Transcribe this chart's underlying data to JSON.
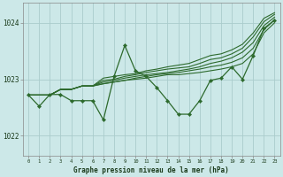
{
  "title": "Graphe pression niveau de la mer (hPa)",
  "background_color": "#cce8e8",
  "grid_color": "#aacccc",
  "line_color": "#2d6a2d",
  "xlim": [
    -0.5,
    23.5
  ],
  "ylim": [
    1021.65,
    1024.35
  ],
  "yticks": [
    1022,
    1023,
    1024
  ],
  "xticks": [
    0,
    1,
    2,
    3,
    4,
    5,
    6,
    7,
    8,
    9,
    10,
    11,
    12,
    13,
    14,
    15,
    16,
    17,
    18,
    19,
    20,
    21,
    22,
    23
  ],
  "main_line": [
    1022.72,
    1022.52,
    1022.73,
    1022.73,
    1022.62,
    1022.62,
    1022.62,
    1022.28,
    1023.05,
    1023.6,
    1023.15,
    1023.05,
    1022.85,
    1022.62,
    1022.38,
    1022.38,
    1022.62,
    1022.98,
    1023.02,
    1023.22,
    1023.0,
    1023.42,
    1023.9,
    1024.05
  ],
  "forecast_lines": [
    [
      1022.72,
      1022.72,
      1022.72,
      1022.82,
      1022.82,
      1022.88,
      1022.88,
      1022.92,
      1022.95,
      1022.98,
      1023.0,
      1023.02,
      1023.05,
      1023.08,
      1023.08,
      1023.1,
      1023.12,
      1023.15,
      1023.18,
      1023.22,
      1023.28,
      1023.45,
      1023.82,
      1024.0
    ],
    [
      1022.72,
      1022.72,
      1022.72,
      1022.82,
      1022.82,
      1022.88,
      1022.88,
      1022.92,
      1022.95,
      1022.98,
      1023.02,
      1023.05,
      1023.08,
      1023.1,
      1023.12,
      1023.15,
      1023.18,
      1023.22,
      1023.25,
      1023.3,
      1023.38,
      1023.55,
      1023.88,
      1024.05
    ],
    [
      1022.72,
      1022.72,
      1022.72,
      1022.82,
      1022.82,
      1022.88,
      1022.88,
      1022.95,
      1022.98,
      1023.02,
      1023.05,
      1023.08,
      1023.1,
      1023.12,
      1023.15,
      1023.18,
      1023.22,
      1023.28,
      1023.32,
      1023.38,
      1023.48,
      1023.65,
      1023.95,
      1024.1
    ],
    [
      1022.72,
      1022.72,
      1022.72,
      1022.82,
      1022.82,
      1022.88,
      1022.88,
      1022.98,
      1023.0,
      1023.05,
      1023.08,
      1023.12,
      1023.15,
      1023.18,
      1023.2,
      1023.22,
      1023.28,
      1023.35,
      1023.38,
      1023.45,
      1023.55,
      1023.75,
      1024.02,
      1024.15
    ],
    [
      1022.72,
      1022.72,
      1022.72,
      1022.82,
      1022.82,
      1022.88,
      1022.88,
      1023.02,
      1023.05,
      1023.08,
      1023.1,
      1023.15,
      1023.18,
      1023.22,
      1023.25,
      1023.28,
      1023.35,
      1023.42,
      1023.45,
      1023.52,
      1023.62,
      1023.82,
      1024.08,
      1024.18
    ]
  ]
}
